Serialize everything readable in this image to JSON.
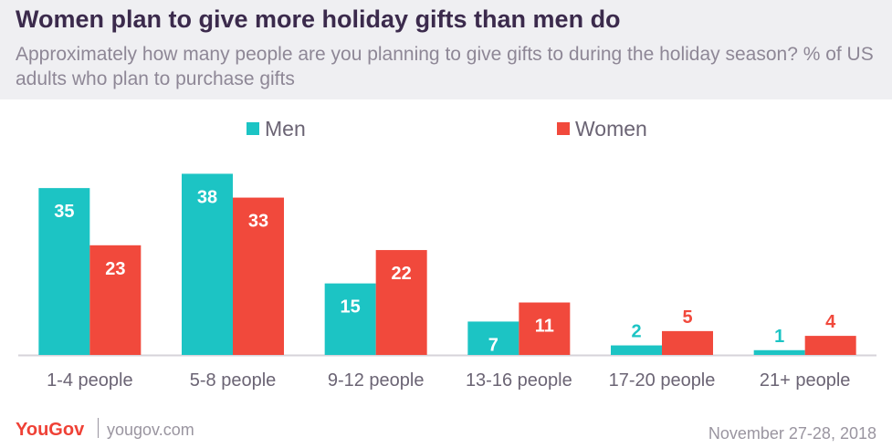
{
  "title": "Women plan to give more holiday gifts than men do",
  "subtitle": "Approximately how many people are you planning to give gifts to during the holiday season? % of US adults who plan to purchase gifts",
  "colors": {
    "men": "#1cc4c4",
    "women": "#f1493c",
    "axis": "#d6d3da",
    "label": "#6b6474"
  },
  "footer": {
    "logo": "YouGov",
    "site": "yougov.com",
    "date": "November 27-28, 2018"
  },
  "chart_data": {
    "type": "bar",
    "title": "Women plan to give more holiday gifts than men do",
    "xlabel": "",
    "ylabel": "",
    "ylim": [
      0,
      40
    ],
    "grid": false,
    "legend_position": "top-center",
    "categories": [
      "1-4 people",
      "5-8 people",
      "9-12 people",
      "13-16 people",
      "17-20 people",
      "21+ people"
    ],
    "series": [
      {
        "name": "Men",
        "values": [
          35,
          38,
          15,
          7,
          2,
          1
        ]
      },
      {
        "name": "Women",
        "values": [
          23,
          33,
          22,
          11,
          5,
          4
        ]
      }
    ]
  }
}
